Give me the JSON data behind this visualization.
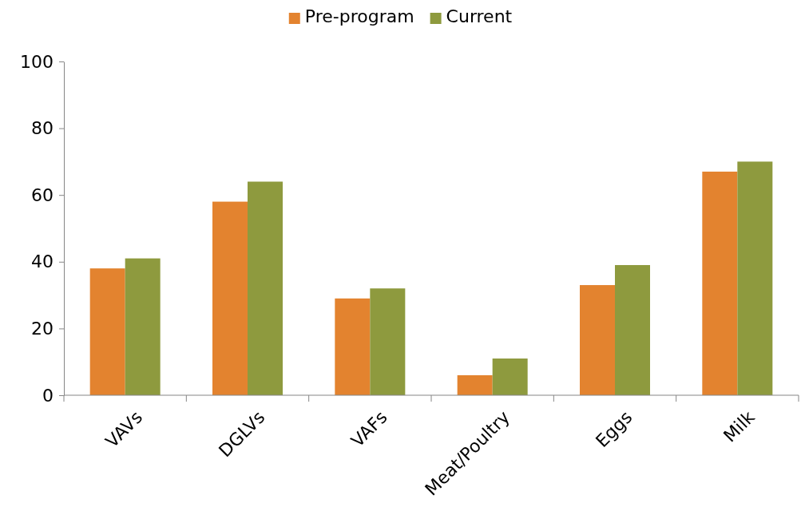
{
  "chart_data": {
    "type": "bar",
    "categories": [
      "VAVs",
      "DGLVs",
      "VAFs",
      "Meat/Poultry",
      "Eggs",
      "Milk"
    ],
    "series": [
      {
        "name": "Pre-program",
        "color": "#e3832f",
        "values": [
          38,
          58,
          29,
          6,
          33,
          67
        ]
      },
      {
        "name": "Current",
        "color": "#8e9a3e",
        "values": [
          41,
          64,
          32,
          11,
          39,
          70
        ]
      }
    ],
    "ylim": [
      0,
      100
    ],
    "yticks": [
      0,
      20,
      40,
      60,
      80,
      100
    ],
    "grid": false,
    "legend": "top"
  }
}
